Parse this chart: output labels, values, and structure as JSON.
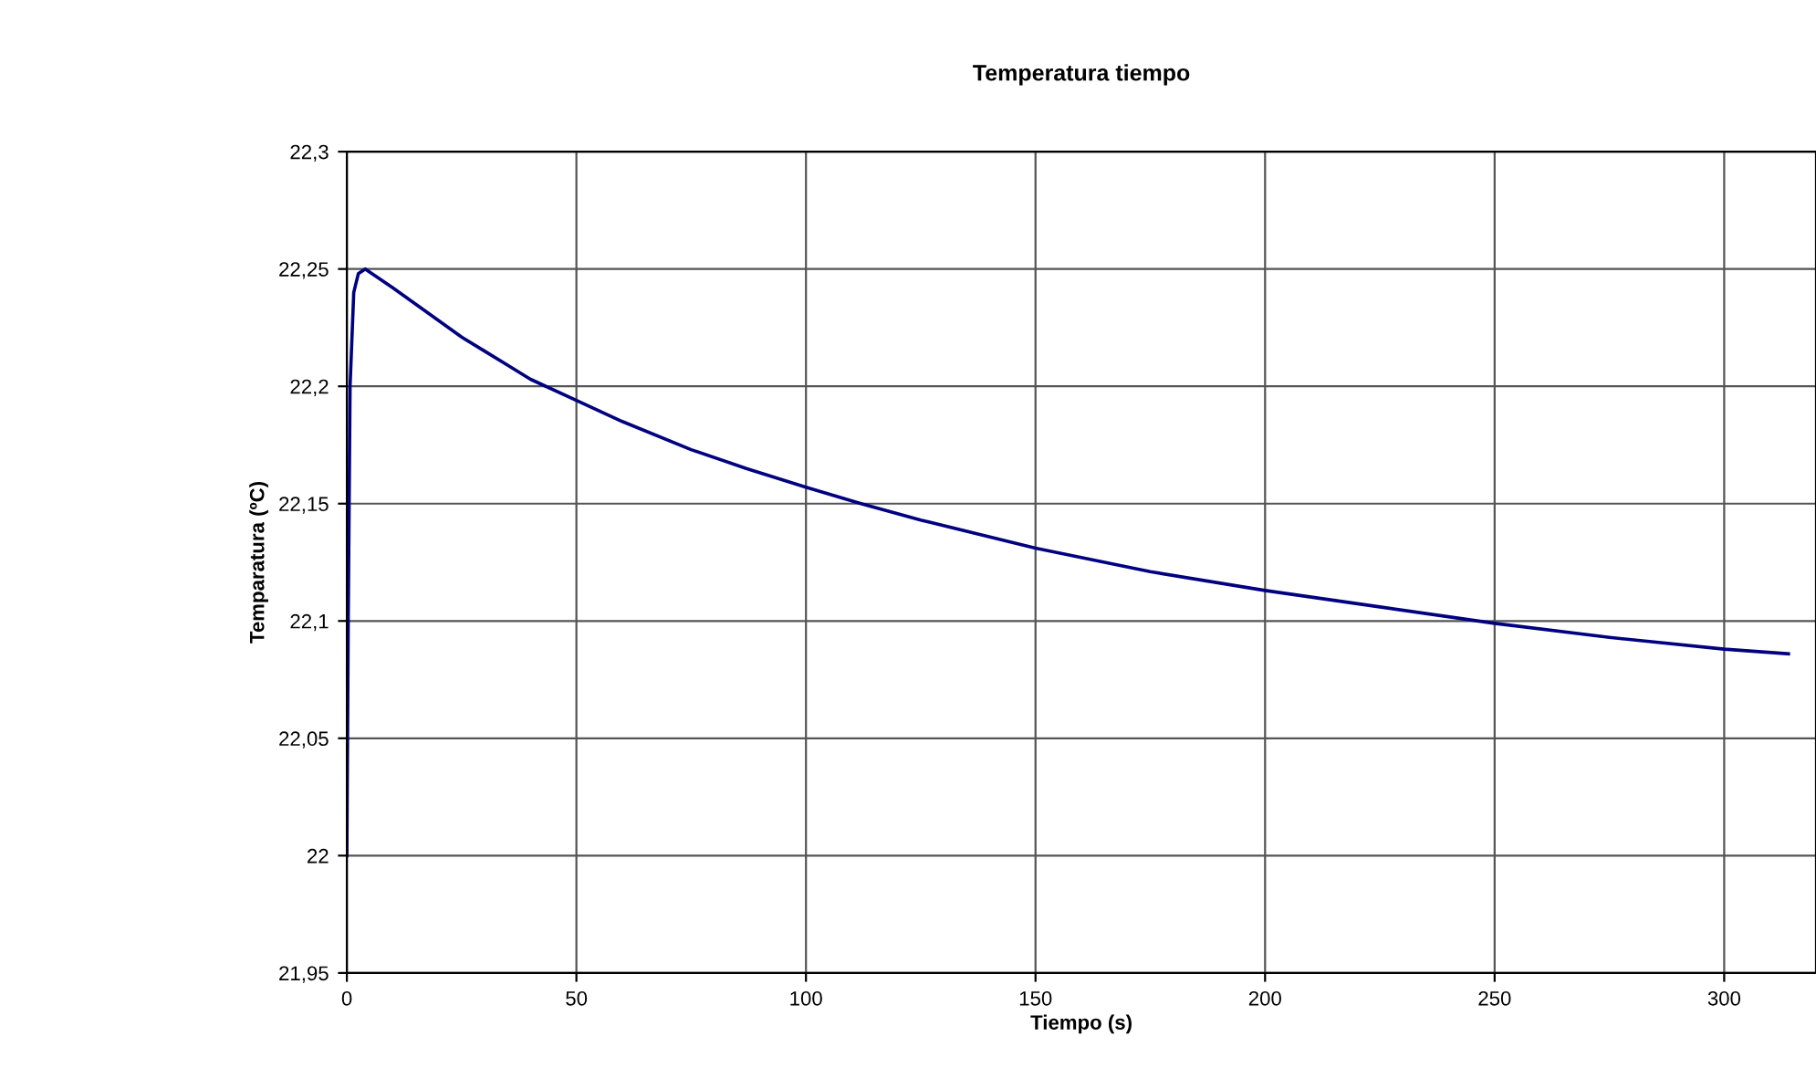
{
  "chart_data": {
    "type": "line",
    "title": "Temperatura tiempo",
    "xlabel": "Tiempo (s)",
    "ylabel": "Temparatura (ºC)",
    "xlim": [
      0,
      320
    ],
    "ylim": [
      21.95,
      22.3
    ],
    "xticks": [
      0,
      50,
      100,
      150,
      200,
      250,
      300
    ],
    "yticks": [
      {
        "value": 21.95,
        "label": "21,95"
      },
      {
        "value": 22,
        "label": "22"
      },
      {
        "value": 22.05,
        "label": "22,05"
      },
      {
        "value": 22.1,
        "label": "22,1"
      },
      {
        "value": 22.15,
        "label": "22,15"
      },
      {
        "value": 22.2,
        "label": "22,2"
      },
      {
        "value": 22.25,
        "label": "22,25"
      },
      {
        "value": 22.3,
        "label": "22,3"
      }
    ],
    "grid": true,
    "marker": "none",
    "line_style": "solid",
    "series": [
      {
        "color": "#000080",
        "x": [
          0,
          0.3,
          0.7,
          1.5,
          2.5,
          4,
          7,
          10,
          15,
          20,
          25,
          30,
          35,
          40,
          50,
          60,
          75,
          87,
          100,
          112,
          125,
          150,
          175,
          200,
          225,
          250,
          275,
          300,
          314
        ],
        "values": [
          22.0,
          22.1,
          22.2,
          22.24,
          22.248,
          22.25,
          22.246,
          22.242,
          22.235,
          22.228,
          22.221,
          22.215,
          22.209,
          22.203,
          22.194,
          22.185,
          22.173,
          22.165,
          22.157,
          22.15,
          22.143,
          22.131,
          22.121,
          22.113,
          22.106,
          22.099,
          22.093,
          22.088,
          22.086
        ]
      }
    ]
  }
}
